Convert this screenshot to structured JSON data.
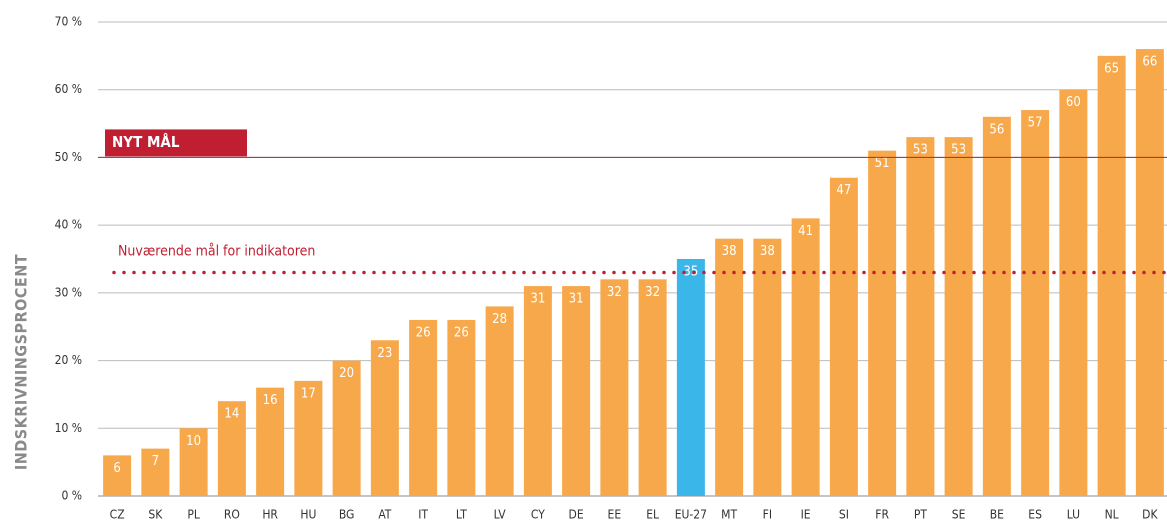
{
  "chart_data": {
    "type": "bar",
    "y_axis_label": "INDSKRIVNINGSPROCENT",
    "categories": [
      "CZ",
      "SK",
      "PL",
      "RO",
      "HR",
      "HU",
      "BG",
      "AT",
      "IT",
      "LT",
      "LV",
      "CY",
      "DE",
      "EE",
      "EL",
      "EU-27",
      "MT",
      "FI",
      "IE",
      "SI",
      "FR",
      "PT",
      "SE",
      "BE",
      "ES",
      "LU",
      "NL",
      "DK"
    ],
    "values": [
      6,
      7,
      10,
      14,
      16,
      17,
      20,
      23,
      26,
      26,
      28,
      31,
      31,
      32,
      32,
      35,
      38,
      38,
      41,
      47,
      51,
      53,
      53,
      56,
      57,
      60,
      65,
      66
    ],
    "colors": [
      "#f7a84a",
      "#f7a84a",
      "#f7a84a",
      "#f7a84a",
      "#f7a84a",
      "#f7a84a",
      "#f7a84a",
      "#f7a84a",
      "#f7a84a",
      "#f7a84a",
      "#f7a84a",
      "#f7a84a",
      "#f7a84a",
      "#f7a84a",
      "#f7a84a",
      "#3ab6e8",
      "#f7a84a",
      "#f7a84a",
      "#f7a84a",
      "#f7a84a",
      "#f7a84a",
      "#f7a84a",
      "#f7a84a",
      "#f7a84a",
      "#f7a84a",
      "#f7a84a",
      "#f7a84a",
      "#f7a84a"
    ],
    "ylim": [
      0,
      70
    ],
    "yticks": [
      {
        "value": 0,
        "label": "0 %"
      },
      {
        "value": 10,
        "label": "10 %"
      },
      {
        "value": 20,
        "label": "20 %"
      },
      {
        "value": 30,
        "label": "30 %"
      },
      {
        "value": 40,
        "label": "40 %"
      },
      {
        "value": 50,
        "label": "50 %"
      },
      {
        "value": 60,
        "label": "60 %"
      },
      {
        "value": 70,
        "label": "70 %"
      }
    ],
    "grid": true,
    "reference_lines": [
      {
        "label": "NYT MÅL",
        "value": 50,
        "style": "solid",
        "color": "#c01f32"
      },
      {
        "label": "Nuværende mål for indikatoren",
        "value": 33,
        "style": "dotted",
        "color": "#c01f32"
      }
    ]
  }
}
